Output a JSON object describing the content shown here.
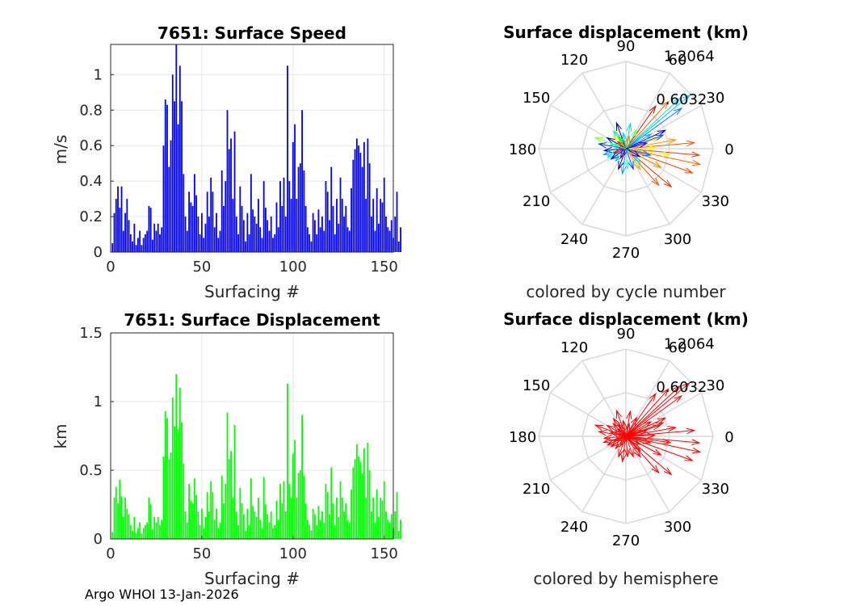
{
  "footer": "Argo WHOI 13-Jan-2026",
  "chart_data": [
    {
      "type": "bar",
      "title": "7651: Surface Speed",
      "xlabel": "Surfacing #",
      "ylabel": "m/s",
      "xlim": [
        0,
        155
      ],
      "ylim": [
        0,
        1.17
      ],
      "xticks": [
        0,
        50,
        100,
        150
      ],
      "yticks": [
        0,
        0.2,
        0.4,
        0.6,
        0.8,
        1
      ],
      "yticklabels": [
        "0",
        "0.2",
        "0.4",
        "0.6",
        "0.8",
        "1"
      ],
      "color": "#0000ff",
      "x_start": 1,
      "values": [
        0.05,
        0.22,
        0.3,
        0.37,
        0.25,
        0.37,
        0.12,
        0.22,
        0.3,
        0.18,
        0.1,
        0.06,
        0.16,
        0.04,
        0.08,
        0.12,
        0.04,
        0.08,
        0.1,
        0.12,
        0.26,
        0.25,
        0.07,
        0.16,
        0.12,
        0.16,
        0.1,
        0.14,
        0.6,
        0.86,
        0.83,
        0.48,
        0.63,
        1.0,
        0.85,
        1.17,
        0.72,
        1.05,
        0.85,
        0.44,
        0.2,
        0.12,
        0.34,
        0.28,
        0.26,
        0.44,
        0.32,
        0.2,
        0.1,
        0.22,
        0.08,
        0.16,
        0.34,
        0.2,
        0.42,
        0.34,
        0.14,
        0.22,
        0.08,
        0.12,
        0.46,
        0.26,
        0.4,
        0.8,
        0.58,
        0.64,
        0.3,
        0.68,
        0.2,
        0.1,
        0.37,
        0.26,
        0.18,
        0.06,
        0.22,
        0.1,
        0.44,
        0.24,
        0.2,
        0.16,
        0.3,
        0.14,
        0.08,
        0.4,
        0.25,
        0.18,
        0.12,
        0.2,
        0.08,
        0.1,
        0.28,
        0.14,
        0.4,
        0.26,
        0.42,
        0.2,
        1.05,
        0.4,
        0.3,
        0.62,
        0.72,
        0.3,
        0.48,
        0.5,
        0.8,
        0.46,
        0.26,
        0.14,
        0.1,
        0.06,
        0.22,
        0.18,
        0.1,
        0.24,
        0.14,
        0.2,
        0.12,
        0.4,
        0.34,
        0.18,
        0.48,
        0.26,
        0.1,
        0.3,
        0.16,
        0.42,
        0.3,
        0.2,
        0.26,
        0.14,
        0.12,
        0.36,
        0.52,
        0.58,
        0.64,
        0.6,
        0.56,
        0.48,
        0.62,
        0.3,
        0.64,
        0.5,
        0.2,
        0.3,
        0.12,
        0.36,
        0.16,
        0.3,
        0.28,
        0.42,
        0.2,
        0.14,
        0.12,
        0.18,
        0.08,
        0.2,
        0.34,
        0.06,
        0.14
      ]
    },
    {
      "type": "bar",
      "title": "7651: Surface Displacement",
      "xlabel": "Surfacing #",
      "ylabel": "km",
      "xlim": [
        0,
        155
      ],
      "ylim": [
        0,
        1.5
      ],
      "xticks": [
        0,
        50,
        100,
        150
      ],
      "yticks": [
        0,
        0.5,
        1,
        1.5
      ],
      "yticklabels": [
        "0",
        "0.5",
        "1",
        "1.5"
      ],
      "color": "#00ff00",
      "x_start": 1,
      "values": [
        0.05,
        0.3,
        0.38,
        0.26,
        0.43,
        0.31,
        0.16,
        0.3,
        0.22,
        0.18,
        0.1,
        0.06,
        0.16,
        0.04,
        0.08,
        0.12,
        0.04,
        0.08,
        0.1,
        0.12,
        0.3,
        0.25,
        0.07,
        0.16,
        0.12,
        0.16,
        0.1,
        0.14,
        0.6,
        0.93,
        0.88,
        0.58,
        0.63,
        1.03,
        0.82,
        1.2,
        0.8,
        1.1,
        0.85,
        0.55,
        0.2,
        0.12,
        0.4,
        0.28,
        0.26,
        0.44,
        0.32,
        0.2,
        0.1,
        0.22,
        0.08,
        0.16,
        0.34,
        0.2,
        0.42,
        0.34,
        0.14,
        0.22,
        0.08,
        0.12,
        0.46,
        0.26,
        0.4,
        0.92,
        0.58,
        0.64,
        0.3,
        0.83,
        0.2,
        0.1,
        0.37,
        0.26,
        0.18,
        0.06,
        0.22,
        0.1,
        0.44,
        0.24,
        0.2,
        0.16,
        0.3,
        0.14,
        0.08,
        0.45,
        0.25,
        0.18,
        0.12,
        0.2,
        0.08,
        0.1,
        0.28,
        0.14,
        0.4,
        0.26,
        0.42,
        0.2,
        1.13,
        0.4,
        0.3,
        0.62,
        0.72,
        0.3,
        0.48,
        0.5,
        0.9,
        0.46,
        0.26,
        0.14,
        0.1,
        0.06,
        0.22,
        0.18,
        0.1,
        0.24,
        0.14,
        0.2,
        0.12,
        0.4,
        0.34,
        0.18,
        0.52,
        0.26,
        0.1,
        0.3,
        0.16,
        0.42,
        0.3,
        0.2,
        0.26,
        0.14,
        0.12,
        0.36,
        0.52,
        0.58,
        0.69,
        0.6,
        0.56,
        0.48,
        0.66,
        0.3,
        0.7,
        0.5,
        0.2,
        0.3,
        0.12,
        0.36,
        0.16,
        0.3,
        0.28,
        0.42,
        0.2,
        0.14,
        0.12,
        0.18,
        0.08,
        0.2,
        0.34,
        0.06,
        0.14
      ]
    },
    {
      "type": "polar",
      "title": "Surface displacement (km)",
      "subtitle": "colored by cycle number",
      "rmax": 1.2064,
      "r_tick_labels": [
        "0.6032",
        "1.2064"
      ],
      "theta_tick_labels": [
        "0",
        "30",
        "60",
        "90",
        "120",
        "150",
        "180",
        "210",
        "240",
        "270",
        "300",
        "330"
      ],
      "color_scheme": "jet",
      "vectors": [
        {
          "deg": 5,
          "r": 0.95,
          "c": "#ff5500"
        },
        {
          "deg": -5,
          "r": 1.02,
          "c": "#ff3300"
        },
        {
          "deg": -12,
          "r": 1.05,
          "c": "#ff6600"
        },
        {
          "deg": -20,
          "r": 0.98,
          "c": "#ff4400"
        },
        {
          "deg": -28,
          "r": 0.55,
          "c": "#ff8800"
        },
        {
          "deg": -40,
          "r": 0.82,
          "c": "#ee3300"
        },
        {
          "deg": -48,
          "r": 0.68,
          "c": "#ff5500"
        },
        {
          "deg": 10,
          "r": 0.7,
          "c": "#ff9900"
        },
        {
          "deg": 18,
          "r": 0.5,
          "c": "#ffcc00"
        },
        {
          "deg": -8,
          "r": 0.62,
          "c": "#ccff33"
        },
        {
          "deg": 2,
          "r": 0.4,
          "c": "#eeff00"
        },
        {
          "deg": 40,
          "r": 1.15,
          "c": "#00bbff"
        },
        {
          "deg": 43,
          "r": 1.02,
          "c": "#00ddff"
        },
        {
          "deg": 36,
          "r": 0.95,
          "c": "#0077ff"
        },
        {
          "deg": 48,
          "r": 0.88,
          "c": "#ff6600"
        },
        {
          "deg": 55,
          "r": 0.72,
          "c": "#aa2200"
        },
        {
          "deg": 25,
          "r": 0.6,
          "c": "#0000dd"
        },
        {
          "deg": 20,
          "r": 0.55,
          "c": "#0055ff"
        },
        {
          "deg": 30,
          "r": 0.4,
          "c": "#00aaff"
        },
        {
          "deg": 60,
          "r": 0.3,
          "c": "#66ff66"
        },
        {
          "deg": 80,
          "r": 0.35,
          "c": "#00dddd"
        },
        {
          "deg": 100,
          "r": 0.22,
          "c": "#00ccff"
        },
        {
          "deg": 110,
          "r": 0.38,
          "c": "#0000aa"
        },
        {
          "deg": 125,
          "r": 0.3,
          "c": "#00ff88"
        },
        {
          "deg": 135,
          "r": 0.25,
          "c": "#ffee00"
        },
        {
          "deg": 150,
          "r": 0.3,
          "c": "#0000ff"
        },
        {
          "deg": 160,
          "r": 0.45,
          "c": "#88ff44"
        },
        {
          "deg": 170,
          "r": 0.38,
          "c": "#0033cc"
        },
        {
          "deg": 185,
          "r": 0.3,
          "c": "#0000cc"
        },
        {
          "deg": 195,
          "r": 0.32,
          "c": "#00aaff"
        },
        {
          "deg": 205,
          "r": 0.28,
          "c": "#00ffcc"
        },
        {
          "deg": 215,
          "r": 0.25,
          "c": "#0000ff"
        },
        {
          "deg": 230,
          "r": 0.22,
          "c": "#00ccff"
        },
        {
          "deg": 250,
          "r": 0.3,
          "c": "#000088"
        },
        {
          "deg": 262,
          "r": 0.35,
          "c": "#00aaff"
        },
        {
          "deg": 275,
          "r": 0.28,
          "c": "#33ffcc"
        },
        {
          "deg": 290,
          "r": 0.3,
          "c": "#0044ff"
        },
        {
          "deg": 305,
          "r": 0.35,
          "c": "#ffaa00"
        },
        {
          "deg": 315,
          "r": 0.28,
          "c": "#00ffff"
        },
        {
          "deg": 345,
          "r": 0.35,
          "c": "#0066ff"
        },
        {
          "deg": 120,
          "r": 0.2,
          "c": "#00ff00"
        },
        {
          "deg": 200,
          "r": 0.18,
          "c": "#ff0000"
        },
        {
          "deg": 240,
          "r": 0.15,
          "c": "#8800aa"
        },
        {
          "deg": 75,
          "r": 0.18,
          "c": "#ff8800"
        },
        {
          "deg": 140,
          "r": 0.15,
          "c": "#ff2200"
        },
        {
          "deg": 330,
          "r": 0.22,
          "c": "#0000ff"
        },
        {
          "deg": 15,
          "r": 0.3,
          "c": "#0000ff"
        },
        {
          "deg": 165,
          "r": 0.22,
          "c": "#00ffaa"
        }
      ]
    },
    {
      "type": "polar",
      "title": "Surface displacement (km)",
      "subtitle": "colored by hemisphere",
      "rmax": 1.2064,
      "r_tick_labels": [
        "0.6032",
        "1.2064"
      ],
      "theta_tick_labels": [
        "0",
        "30",
        "60",
        "90",
        "120",
        "150",
        "180",
        "210",
        "240",
        "270",
        "300",
        "330"
      ],
      "color": "#ff0000",
      "vectors": [
        {
          "deg": 5,
          "r": 0.95
        },
        {
          "deg": -5,
          "r": 1.02
        },
        {
          "deg": -12,
          "r": 1.05
        },
        {
          "deg": -20,
          "r": 0.98
        },
        {
          "deg": -28,
          "r": 0.55
        },
        {
          "deg": -40,
          "r": 0.82
        },
        {
          "deg": -48,
          "r": 0.68
        },
        {
          "deg": 10,
          "r": 0.7
        },
        {
          "deg": 18,
          "r": 0.5
        },
        {
          "deg": -8,
          "r": 0.62
        },
        {
          "deg": 2,
          "r": 0.4
        },
        {
          "deg": 40,
          "r": 1.15
        },
        {
          "deg": 43,
          "r": 1.02
        },
        {
          "deg": 36,
          "r": 0.95
        },
        {
          "deg": 48,
          "r": 0.88
        },
        {
          "deg": 55,
          "r": 0.72
        },
        {
          "deg": 25,
          "r": 0.6
        },
        {
          "deg": 20,
          "r": 0.55
        },
        {
          "deg": 30,
          "r": 0.4
        },
        {
          "deg": 60,
          "r": 0.3
        },
        {
          "deg": 80,
          "r": 0.35
        },
        {
          "deg": 100,
          "r": 0.22
        },
        {
          "deg": 110,
          "r": 0.38
        },
        {
          "deg": 125,
          "r": 0.3
        },
        {
          "deg": 135,
          "r": 0.25
        },
        {
          "deg": 150,
          "r": 0.3
        },
        {
          "deg": 160,
          "r": 0.45
        },
        {
          "deg": 170,
          "r": 0.38
        },
        {
          "deg": 185,
          "r": 0.3
        },
        {
          "deg": 195,
          "r": 0.32
        },
        {
          "deg": 205,
          "r": 0.28
        },
        {
          "deg": 215,
          "r": 0.25
        },
        {
          "deg": 230,
          "r": 0.22
        },
        {
          "deg": 250,
          "r": 0.3
        },
        {
          "deg": 262,
          "r": 0.35
        },
        {
          "deg": 275,
          "r": 0.28
        },
        {
          "deg": 290,
          "r": 0.3
        },
        {
          "deg": 305,
          "r": 0.35
        },
        {
          "deg": 315,
          "r": 0.28
        },
        {
          "deg": 345,
          "r": 0.35
        },
        {
          "deg": 120,
          "r": 0.2
        },
        {
          "deg": 200,
          "r": 0.18
        },
        {
          "deg": 240,
          "r": 0.15
        },
        {
          "deg": 75,
          "r": 0.18
        },
        {
          "deg": 140,
          "r": 0.15
        },
        {
          "deg": 330,
          "r": 0.22
        },
        {
          "deg": 15,
          "r": 0.3
        },
        {
          "deg": 165,
          "r": 0.22
        }
      ]
    }
  ]
}
